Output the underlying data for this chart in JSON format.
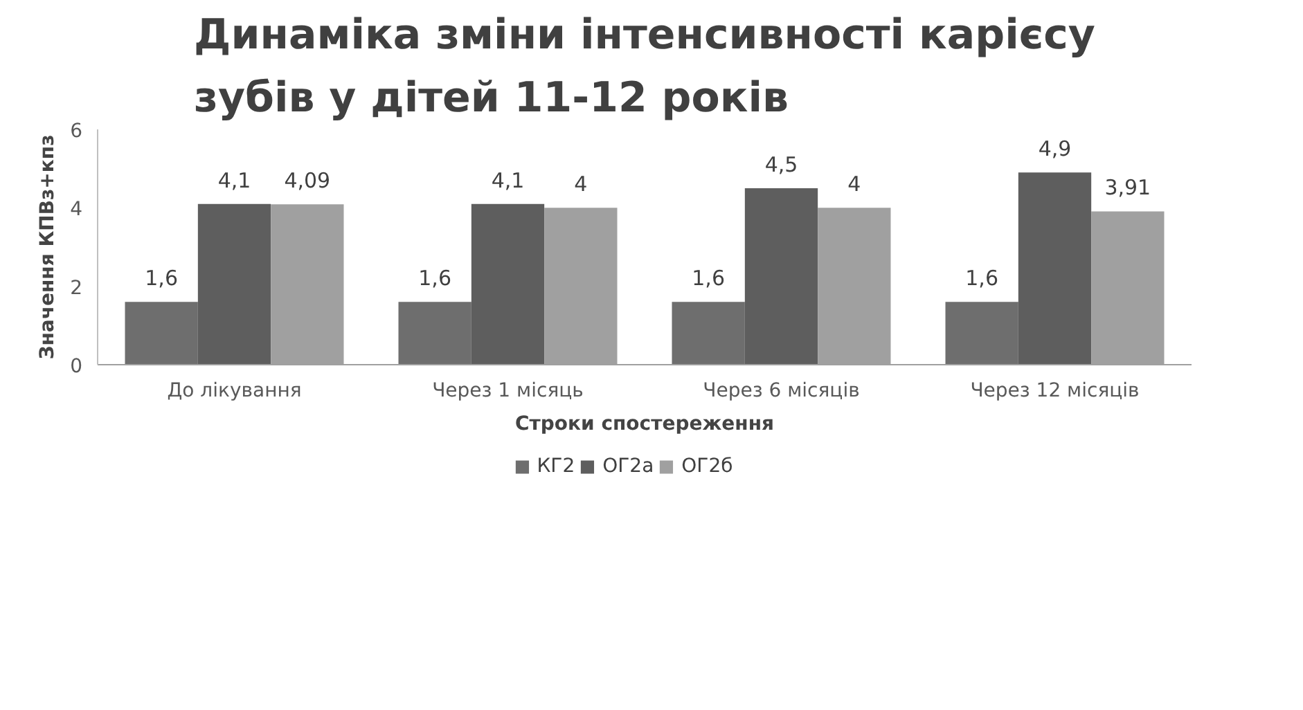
{
  "chart_data": {
    "type": "bar",
    "title": "Динаміка зміни інтенсивності карієсу зубів у дітей 11-12 років",
    "xlabel": "Строки спостереження",
    "ylabel": "Значення КПВз+кпз",
    "categories": [
      "До лікування",
      "Через 1 місяць",
      "Через 6 місяців",
      "Через 12 місяців"
    ],
    "series": [
      {
        "name": "КГ2",
        "color": "#6e6e6e",
        "values": [
          1.6,
          1.6,
          1.6,
          1.6
        ],
        "value_labels": [
          "1,6",
          "1,6",
          "1,6",
          "1,6"
        ]
      },
      {
        "name": "ОГ2а",
        "color": "#5e5e5e",
        "values": [
          4.1,
          4.1,
          4.5,
          4.9
        ],
        "value_labels": [
          "4,1",
          "4,1",
          "4,5",
          "4,9"
        ]
      },
      {
        "name": "ОГ2б",
        "color": "#a0a0a0",
        "values": [
          4.09,
          4.0,
          4.0,
          3.91
        ],
        "value_labels": [
          "4,09",
          "4",
          "4",
          "3,91"
        ]
      }
    ],
    "ylim": [
      0,
      6
    ],
    "yticks": [
      0,
      2,
      4,
      6
    ],
    "grid": false,
    "legend": "bottom"
  }
}
